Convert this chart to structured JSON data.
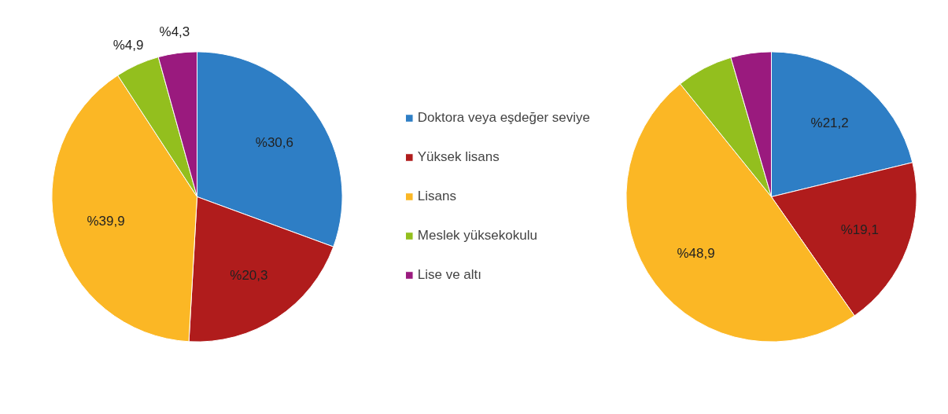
{
  "chart_data": [
    {
      "type": "pie",
      "categories": [
        "Doktora veya eşdeğer seviye",
        "Yüksek lisans",
        "Lisans",
        "Meslek yüksekokulu",
        "Lise ve altı"
      ],
      "values": [
        30.6,
        20.3,
        39.9,
        4.9,
        4.3
      ],
      "colors": [
        "#2e7ec5",
        "#b01c1c",
        "#fbb725",
        "#93bf1e",
        "#9a1a7e"
      ],
      "value_labels": [
        "%30,6",
        "%20,3",
        "%39,9",
        "%4,9",
        "%4,3"
      ],
      "legend": "right"
    },
    {
      "type": "pie",
      "categories": [
        null,
        null,
        null,
        null,
        null
      ],
      "values": [
        21.2,
        19.1,
        48.9,
        6.3,
        4.5
      ],
      "colors": [
        "#2e7ec5",
        "#b01c1c",
        "#fbb725",
        "#93bf1e",
        "#9a1a7e"
      ],
      "value_labels": [
        "%21,2",
        "%19,1",
        "%48,9",
        null,
        null
      ]
    }
  ]
}
